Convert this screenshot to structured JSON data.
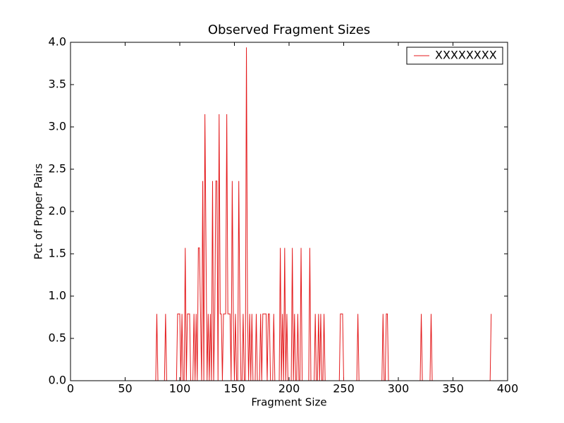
{
  "chart_data": {
    "type": "line",
    "title": "Observed Fragment Sizes",
    "x_label": "Fragment Size",
    "y_label": "Pct of Proper Pairs",
    "xlim": [
      0,
      400
    ],
    "xticks": [
      0,
      50,
      100,
      150,
      200,
      250,
      300,
      350,
      400
    ],
    "ylim": [
      0,
      4.0
    ],
    "yticks": [
      {
        "value": 0,
        "label": "0.0"
      },
      {
        "value": 0.5,
        "label": "0.5"
      },
      {
        "value": 1,
        "label": "1.0"
      },
      {
        "value": 1.5,
        "label": "1.5"
      },
      {
        "value": 2,
        "label": "2.0"
      },
      {
        "value": 2.5,
        "label": "2.5"
      },
      {
        "value": 3,
        "label": "3.0"
      },
      {
        "value": 3.5,
        "label": "3.5"
      },
      {
        "value": 4,
        "label": "4.0"
      }
    ],
    "legend": "upper right",
    "grid": false,
    "x": [
      0,
      78,
      79,
      80,
      86,
      87,
      88,
      97,
      98,
      99,
      100,
      101,
      102,
      103,
      104,
      105,
      106,
      107,
      108,
      109,
      110,
      112,
      113,
      114,
      115,
      116,
      117,
      118,
      119,
      120,
      121,
      122,
      123,
      124,
      125,
      126,
      127,
      128,
      129,
      130,
      131,
      132,
      133,
      134,
      135,
      136,
      137,
      138,
      139,
      140,
      141,
      142,
      143,
      144,
      145,
      146,
      147,
      148,
      149,
      150,
      151,
      152,
      153,
      154,
      155,
      156,
      157,
      158,
      159,
      160,
      161,
      162,
      163,
      164,
      165,
      166,
      167,
      169,
      170,
      171,
      173,
      174,
      175,
      176,
      177,
      178,
      179,
      180,
      181,
      182,
      183,
      185,
      186,
      187,
      191,
      192,
      193,
      194,
      195,
      196,
      197,
      198,
      199,
      202,
      203,
      204,
      205,
      206,
      207,
      208,
      209,
      210,
      211,
      212,
      218,
      219,
      220,
      223,
      224,
      225,
      226,
      227,
      228,
      229,
      230,
      231,
      232,
      233,
      246,
      247,
      248,
      249,
      250,
      262,
      263,
      264,
      285,
      286,
      287,
      288,
      289,
      290,
      291,
      320,
      321,
      322,
      329,
      330,
      331,
      384,
      385
    ],
    "series": [
      {
        "name": "XXXXXXXX",
        "color": "#e41a1c",
        "values": [
          0,
          0,
          0.79,
          0,
          0,
          0.79,
          0,
          0,
          0.79,
          0.79,
          0.79,
          0,
          0.79,
          0,
          0,
          1.57,
          0,
          0.79,
          0.79,
          0.79,
          0,
          0,
          0.79,
          0,
          0.79,
          0,
          1.57,
          1.57,
          0.79,
          0,
          2.36,
          0,
          3.15,
          1.57,
          0,
          0.79,
          0,
          0.79,
          0,
          2.36,
          0,
          0.79,
          2.36,
          2.36,
          0,
          3.15,
          0.79,
          0.79,
          0,
          0.79,
          0.79,
          0.79,
          3.15,
          0.79,
          0.79,
          0.79,
          0,
          2.36,
          0.79,
          0,
          0.79,
          0,
          0,
          2.36,
          0.79,
          0,
          0,
          0.79,
          0,
          0,
          3.94,
          0.79,
          0,
          0.79,
          0,
          0.79,
          0,
          0,
          0.79,
          0,
          0,
          0.79,
          0,
          0.79,
          0.79,
          0.79,
          0.79,
          0,
          0.79,
          0.79,
          0,
          0,
          0.79,
          0,
          0,
          1.57,
          0,
          0.79,
          0,
          1.57,
          0,
          0.79,
          0,
          0,
          1.57,
          0,
          0.79,
          0,
          0,
          0.79,
          0,
          0,
          1.57,
          0,
          0,
          1.57,
          0,
          0,
          0.79,
          0,
          0,
          0.79,
          0,
          0.79,
          0,
          0,
          0.79,
          0,
          0,
          0.79,
          0.79,
          0.79,
          0,
          0,
          0.79,
          0,
          0,
          0.79,
          0,
          0,
          0.79,
          0.79,
          0,
          0,
          0.79,
          0,
          0,
          0.79,
          0,
          0,
          0.79
        ]
      }
    ]
  }
}
